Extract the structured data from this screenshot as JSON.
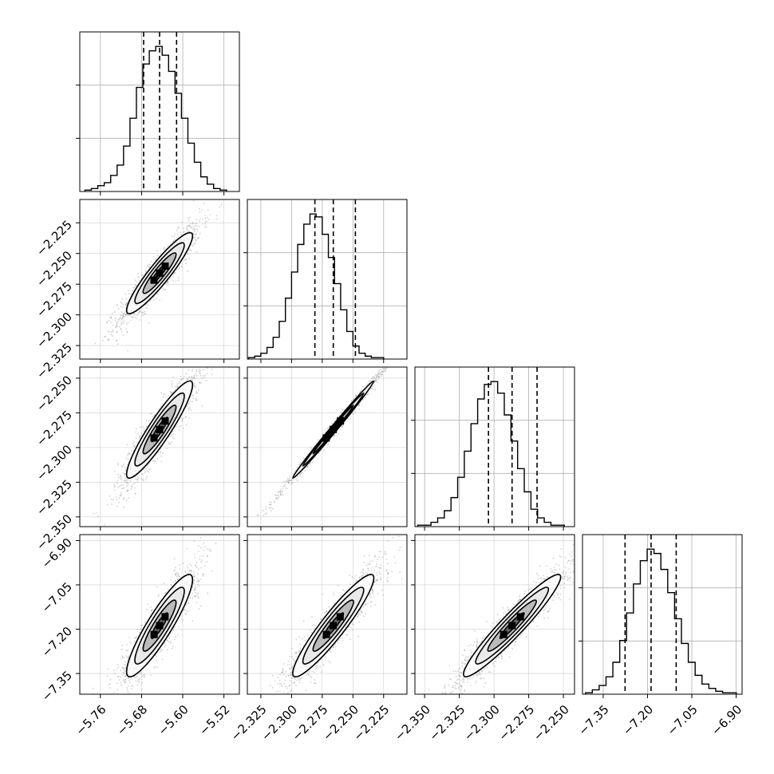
{
  "colors": {
    "frame": "#000000",
    "grid": "#b0b0b0",
    "points": "#7f7f7f",
    "fill_light": "#e6e6e6",
    "fill_mid": "#b3b3b3",
    "fill_dark": "#555555",
    "peak": "#000000"
  },
  "chart_data": {
    "type": "corner",
    "title": "",
    "grid": true,
    "parameters": [
      {
        "index": 0,
        "range": [
          -5.8,
          -5.49
        ],
        "ticks": [
          -5.76,
          -5.68,
          -5.6,
          -5.52
        ],
        "tick_labels": [
          "−5.76",
          "−5.68",
          "−5.60",
          "−5.52"
        ],
        "quantiles": [
          -5.676,
          -5.645,
          -5.612
        ],
        "histogram": {
          "edges_start": -5.79,
          "bin_width": 0.0125,
          "counts": [
            1,
            2,
            4,
            6,
            11,
            18,
            31,
            50,
            71,
            87,
            96,
            99,
            93,
            82,
            67,
            50,
            33,
            20,
            10,
            5,
            2,
            1
          ]
        }
      },
      {
        "index": 1,
        "range": [
          -2.336,
          -2.206
        ],
        "ticks": [
          -2.325,
          -2.3,
          -2.275,
          -2.25,
          -2.225
        ],
        "tick_labels": [
          "−2.325",
          "−2.300",
          "−2.275",
          "−2.250",
          "−2.225"
        ],
        "quantiles": [
          -2.281,
          -2.266,
          -2.248
        ],
        "histogram": {
          "edges_start": -2.335,
          "bin_width": 0.005,
          "counts": [
            1,
            2,
            4,
            8,
            15,
            26,
            42,
            60,
            79,
            93,
            100,
            98,
            86,
            70,
            52,
            34,
            19,
            9,
            4,
            2,
            1,
            1
          ]
        }
      },
      {
        "index": 2,
        "range": [
          -2.357,
          -2.242
        ],
        "ticks": [
          -2.35,
          -2.325,
          -2.3,
          -2.275,
          -2.25
        ],
        "tick_labels": [
          "−2.350",
          "−2.325",
          "−2.300",
          "−2.275",
          "−2.250"
        ],
        "quantiles": [
          -2.304,
          -2.287,
          -2.269
        ],
        "histogram": {
          "edges_start": -2.355,
          "bin_width": 0.0048,
          "counts": [
            1,
            1,
            3,
            6,
            11,
            20,
            34,
            52,
            71,
            88,
            98,
            100,
            92,
            77,
            59,
            40,
            24,
            12,
            6,
            3,
            1,
            1
          ]
        }
      },
      {
        "index": 3,
        "range": [
          -7.42,
          -6.88
        ],
        "ticks": [
          -7.35,
          -7.2,
          -7.05,
          -6.9
        ],
        "tick_labels": [
          "−7.35",
          "−7.20",
          "−7.05",
          "−6.90"
        ],
        "quantiles": [
          -7.276,
          -7.188,
          -7.103
        ],
        "histogram": {
          "edges_start": -7.41,
          "bin_width": 0.0232,
          "counts": [
            1,
            3,
            6,
            12,
            22,
            37,
            56,
            76,
            92,
            100,
            97,
            86,
            70,
            52,
            35,
            22,
            13,
            7,
            4,
            2,
            1,
            1
          ]
        }
      }
    ],
    "correlations": [
      [
        1.0,
        0.92,
        0.92,
        0.9
      ],
      [
        0.92,
        1.0,
        0.995,
        0.93
      ],
      [
        0.92,
        0.995,
        1.0,
        0.95
      ],
      [
        0.9,
        0.93,
        0.95,
        1.0
      ]
    ],
    "contour_levels_sigma": [
      0.5,
      1.0,
      1.5,
      2.0
    ]
  }
}
